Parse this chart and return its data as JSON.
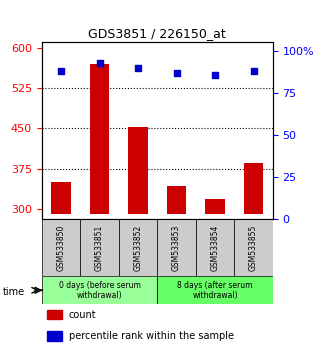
{
  "title": "GDS3851 / 226150_at",
  "samples": [
    "GSM533850",
    "GSM533851",
    "GSM533852",
    "GSM533853",
    "GSM533854",
    "GSM533855"
  ],
  "counts": [
    350,
    570,
    453,
    342,
    318,
    385
  ],
  "percentiles": [
    88,
    93,
    90,
    87,
    86,
    88
  ],
  "ylim_left": [
    280,
    610
  ],
  "ylim_right": [
    0,
    105
  ],
  "yticks_left": [
    300,
    375,
    450,
    525,
    600
  ],
  "yticks_right": [
    0,
    25,
    50,
    75,
    100
  ],
  "ytick_labels_right": [
    "0",
    "25",
    "50",
    "75",
    "100%"
  ],
  "bar_color": "#cc0000",
  "dot_color": "#0000cc",
  "groups": [
    {
      "label": "0 days (before serum\nwithdrawal)",
      "samples": [
        0,
        1,
        2
      ],
      "color": "#99ff99"
    },
    {
      "label": "8 days (after serum\nwithdrawal)",
      "samples": [
        3,
        4,
        5
      ],
      "color": "#66ff66"
    }
  ],
  "legend_items": [
    {
      "color": "#cc0000",
      "label": "count"
    },
    {
      "color": "#0000cc",
      "label": "percentile rank within the sample"
    }
  ],
  "time_label": "time",
  "grid_color": "#000000",
  "background_plot": "#ffffff",
  "sample_box_color": "#cccccc",
  "bar_baseline": 290,
  "gridlines_at": [
    375,
    450,
    525
  ]
}
